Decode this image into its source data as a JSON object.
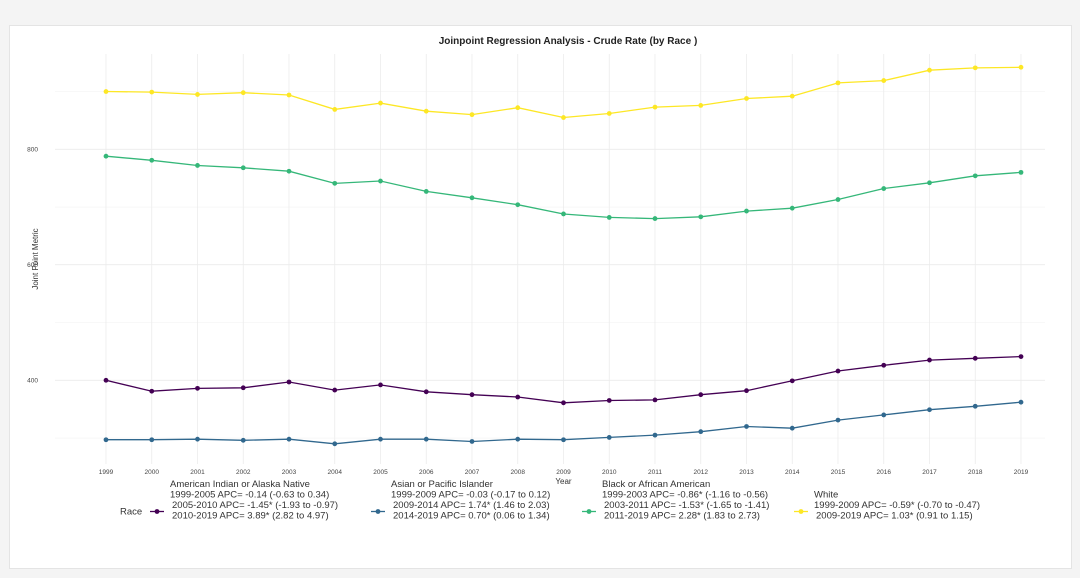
{
  "chart_data": {
    "type": "line",
    "title": "Joinpoint Regression Analysis - Crude Rate (by Race )",
    "xlabel": "Year",
    "ylabel": "Joint Point Metric",
    "x": [
      "1999",
      "2000",
      "2001",
      "2002",
      "2003",
      "2004",
      "2005",
      "2006",
      "2007",
      "2008",
      "2009",
      "2010",
      "2011",
      "2012",
      "2013",
      "2014",
      "2015",
      "2016",
      "2017",
      "2018",
      "2019"
    ],
    "ylim": [
      255,
      965
    ],
    "yticks": [
      400,
      600,
      800
    ],
    "grid": true,
    "legend_position": "bottom",
    "legend_title": "Race",
    "series": [
      {
        "name": "American Indian or Alaska Native",
        "color": "#440154",
        "values": [
          400,
          381,
          386,
          387,
          397,
          383,
          392,
          380,
          375,
          371,
          361,
          365,
          366,
          375,
          382,
          399,
          416,
          426,
          435,
          438,
          441
        ],
        "legend_lines": [
          "1999-2005   APC= -0.14 (-0.63 to 0.34)",
          "2005-2010   APC= -1.45* (-1.93 to -0.97)",
          "2010-2019   APC= 3.89* (2.82 to 4.97)"
        ]
      },
      {
        "name": "Asian or Pacific Islander",
        "color": "#31688e",
        "values": [
          297,
          297,
          298,
          296,
          298,
          290,
          298,
          298,
          294,
          298,
          297,
          301,
          305,
          311,
          320,
          317,
          331,
          340,
          349,
          355,
          362
        ],
        "legend_lines": [
          "1999-2009   APC= -0.03 (-0.17 to 0.12)",
          "2009-2014   APC= 1.74* (1.46 to 2.03)",
          "2014-2019   APC= 0.70* (0.06 to 1.34)"
        ]
      },
      {
        "name": "Black or African American",
        "color": "#35b779",
        "values": [
          788,
          781,
          772,
          768,
          762,
          741,
          745,
          727,
          716,
          704,
          688,
          682,
          680,
          683,
          693,
          698,
          713,
          732,
          742,
          754,
          760
        ],
        "legend_lines": [
          "1999-2003   APC= -0.86* (-1.16 to -0.56)",
          "2003-2011   APC= -1.53* (-1.65 to -1.41)",
          "2011-2019   APC= 2.28* (1.83 to 2.73)"
        ]
      },
      {
        "name": "White",
        "color": "#fde725",
        "values": [
          900,
          899,
          895,
          898,
          894,
          869,
          880,
          866,
          860,
          872,
          855,
          862,
          873,
          876,
          888,
          892,
          915,
          919,
          937,
          941,
          942
        ],
        "legend_lines": [
          "1999-2009   APC= -0.59* (-0.70 to -0.47)",
          "2009-2019   APC= 1.03* (0.91 to 1.15)"
        ]
      }
    ]
  }
}
